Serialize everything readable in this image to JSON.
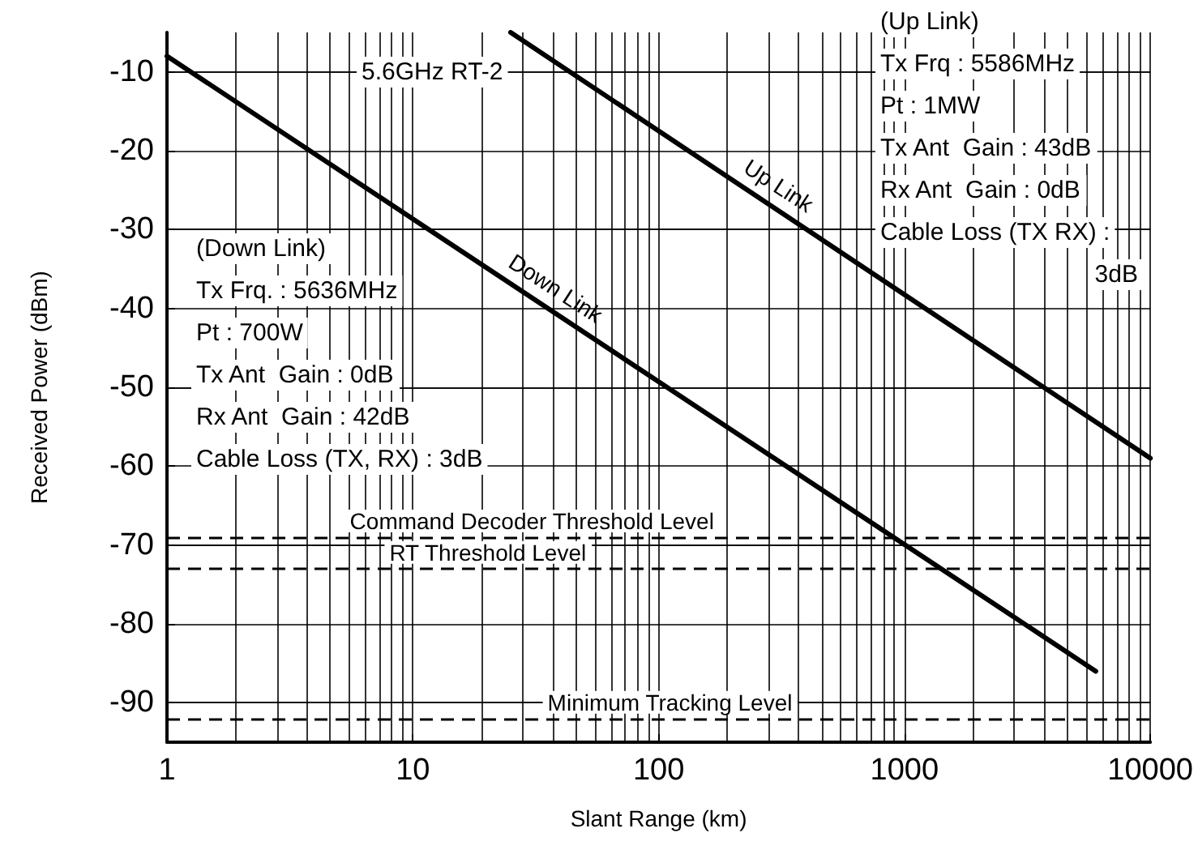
{
  "chart_data": {
    "type": "line",
    "xlabel": "Slant Range (km)",
    "ylabel": "Received Power (dBm)",
    "log": "x",
    "xlim": [
      1,
      10000
    ],
    "xticks": [
      1,
      10,
      100,
      1000,
      10000
    ],
    "ylim": [
      -95,
      -5
    ],
    "yticks": [
      -10,
      -20,
      -30,
      -40,
      -50,
      -60,
      -70,
      -80,
      -90
    ],
    "grid": true,
    "legend": false,
    "marker": "none",
    "line_style": "solid",
    "series": [
      {
        "name": "Down Link",
        "color": "#000000",
        "x": [
          1,
          6000
        ],
        "values": [
          -8,
          -86
        ]
      },
      {
        "name": "Up Link",
        "color": "#000000",
        "x": [
          25,
          10000
        ],
        "values": [
          -5,
          -59
        ]
      }
    ],
    "ref_lines": [
      {
        "axis": "y",
        "value": -69,
        "label": "Command Decoder Threshold Level",
        "line_style": "dashed",
        "color": "#000000"
      },
      {
        "axis": "y",
        "value": -73,
        "label": "RT Threshold Level",
        "line_style": "dashed",
        "color": "#000000"
      },
      {
        "axis": "y",
        "value": -92,
        "label": "Minimum Tracking Level",
        "line_style": "dashed",
        "color": "#000000"
      }
    ],
    "annotations": [
      "5.6GHz RT-2",
      "(Up Link)\nTx Frq : 5586MHz\nPt : 1MW\nTx Ant  Gain : 43dB\nRx Ant  Gain : 0dB\nCable Loss (TX RX) :\n3dB",
      "(Down Link)\nTx Frq. : 5636MHz\nPt : 700W\nTx Ant  Gain : 0dB\nRx Ant  Gain : 42dB\nCable Loss (TX, RX) : 3dB"
    ]
  }
}
